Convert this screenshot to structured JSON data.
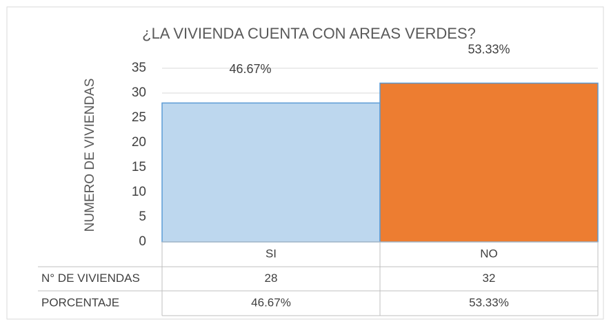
{
  "chart_data": {
    "type": "bar",
    "title": "¿LA VIVIENDA CUENTA CON AREAS VERDES?",
    "y_label": "NUMERO DE VIVIENDAS",
    "categories": [
      "SI",
      "NO"
    ],
    "series": [
      {
        "name": "N° DE VIVIENDAS",
        "colors": [
          "#bdd7ee",
          "#ed7d31"
        ],
        "values": [
          28,
          32
        ],
        "value_labels": [
          "46.67%",
          "53.33%"
        ]
      }
    ],
    "percent_row_label": "PORCENTAJE",
    "ylim": [
      0,
      35
    ],
    "yticks": [
      0,
      5,
      10,
      15,
      20,
      25,
      30,
      35
    ],
    "grid": true,
    "data_table": true
  }
}
